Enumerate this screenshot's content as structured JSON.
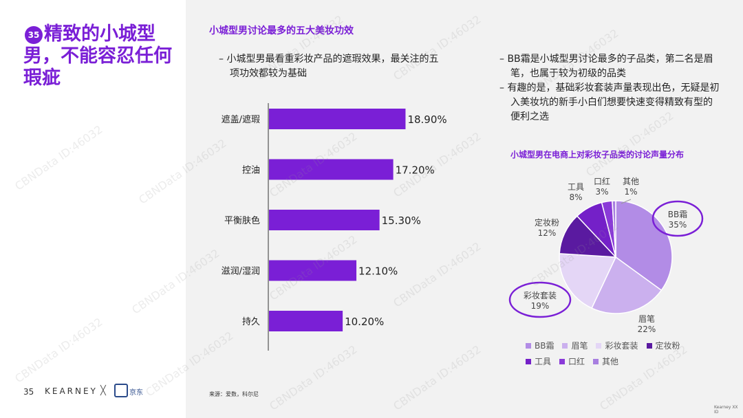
{
  "page": {
    "badge": "35",
    "title": "精致的小城型男，不能容忍任何瑕疵",
    "page_number": "35",
    "brand_left": "KEARNEY",
    "brand_sep": "╳",
    "brand_right": "京东",
    "source": "来源：爱数，科尔尼",
    "copyright": "Kearney XX ID",
    "watermark": "CBNData ID:46032"
  },
  "bar_section": {
    "title": "小城型男讨论最多的五大美妆功效",
    "bullet": "– 小城型男最看重彩妆产品的遮瑕效果，最关注的五项功效都较为基础"
  },
  "right_bullets": [
    "– BB霜是小城型男讨论最多的子品类，第二名是眉笔，也属于较为初级的品类",
    "– 有趣的是，基础彩妆套装声量表现出色，无疑是初入美妆坑的新手小白们想要快速变得精致有型的便利之选"
  ],
  "pie_section": {
    "title": "小城型男在电商上对彩妆子品类的讨论声量分布"
  },
  "chart_data": [
    {
      "type": "bar",
      "orientation": "horizontal",
      "categories": [
        "遮盖/遮瑕",
        "控油",
        "平衡肤色",
        "滋润/湿润",
        "持久"
      ],
      "values": [
        18.9,
        17.2,
        15.3,
        12.1,
        10.2
      ],
      "value_labels": [
        "18.90%",
        "17.20%",
        "15.30%",
        "12.10%",
        "10.20%"
      ],
      "color": "#7a1fd6",
      "xlim": [
        0,
        20
      ]
    },
    {
      "type": "pie",
      "title": "小城型男在电商上对彩妆子品类的讨论声量分布",
      "legend_position": "bottom",
      "slices": [
        {
          "name": "BB霜",
          "value": 35,
          "label": "35%",
          "color": "#b28ce6"
        },
        {
          "name": "眉笔",
          "value": 22,
          "label": "22%",
          "color": "#cbb0ee"
        },
        {
          "name": "彩妆套装",
          "value": 19,
          "label": "19%",
          "color": "#e4d6f6"
        },
        {
          "name": "定妆粉",
          "value": 12,
          "label": "12%",
          "color": "#5a1aa0"
        },
        {
          "name": "工具",
          "value": 8,
          "label": "8%",
          "color": "#7420c8"
        },
        {
          "name": "口红",
          "value": 3,
          "label": "3%",
          "color": "#8a3ad8"
        },
        {
          "name": "其他",
          "value": 1,
          "label": "1%",
          "color": "#a87fe0"
        }
      ]
    }
  ]
}
